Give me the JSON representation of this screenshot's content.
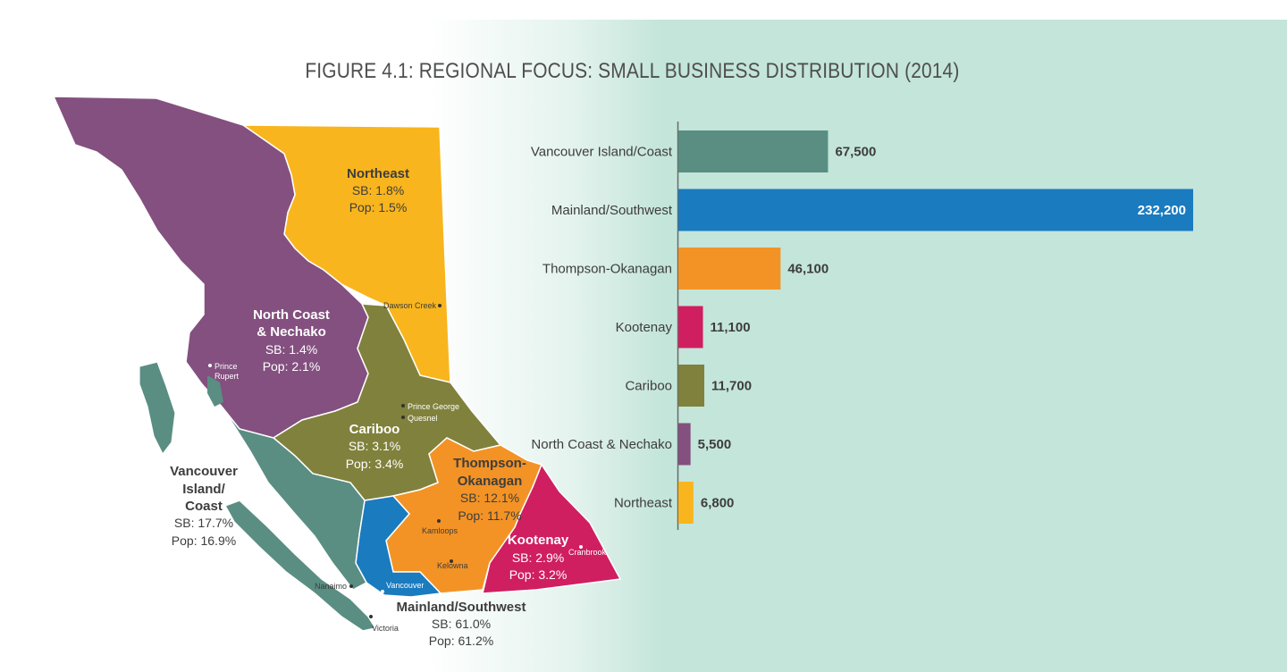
{
  "title": "FIGURE 4.1: REGIONAL FOCUS: SMALL BUSINESS DISTRIBUTION (2014)",
  "colors": {
    "vancouver_island": "#5a8e83",
    "mainland": "#1a7bbf",
    "thompson": "#f39325",
    "kootenay": "#cf1f61",
    "cariboo": "#80813c",
    "north_coast": "#83507f",
    "northeast": "#f9b51d",
    "label_dark": "#3d3d3d",
    "axis": "#6a6a6a"
  },
  "map": {
    "regions": [
      {
        "name": "Northeast",
        "sb": "SB: 1.8%",
        "pop": "Pop: 1.5%"
      },
      {
        "name1": "North Coast",
        "name2": "& Nechako",
        "sb": "SB: 1.4%",
        "pop": "Pop: 2.1%"
      },
      {
        "name": "Cariboo",
        "sb": "SB: 3.1%",
        "pop": "Pop: 3.4%"
      },
      {
        "name1": "Thompson-",
        "name2": "Okanagan",
        "sb": "SB: 12.1%",
        "pop": "Pop: 11.7%"
      },
      {
        "name": "Kootenay",
        "sb": "SB: 2.9%",
        "pop": "Pop: 3.2%"
      },
      {
        "name1": "Vancouver",
        "name2": "Island/",
        "name3": "Coast",
        "sb": "SB: 17.7%",
        "pop": "Pop: 16.9%"
      },
      {
        "name": "Mainland/Southwest",
        "sb": "SB: 61.0%",
        "pop": "Pop: 61.2%"
      }
    ],
    "cities": {
      "dawson_creek": "Dawson Creek",
      "prince_rupert_1": "Prince",
      "prince_rupert_2": "Rupert",
      "prince_george": "Prince George",
      "quesnel": "Quesnel",
      "kamloops": "Kamloops",
      "kelowna": "Kelowna",
      "cranbrook": "Cranbrook",
      "vancouver": "Vancouver",
      "nanaimo": "Nanaimo",
      "victoria": "Victoria"
    }
  },
  "chart_data": {
    "type": "bar",
    "orientation": "horizontal",
    "title": "FIGURE 4.1: REGIONAL FOCUS: SMALL BUSINESS DISTRIBUTION (2014)",
    "xlabel": "",
    "ylabel": "",
    "xlim": [
      0,
      232200
    ],
    "categories": [
      "Vancouver Island/Coast",
      "Mainland/Southwest",
      "Thompson-Okanagan",
      "Kootenay",
      "Cariboo",
      "North Coast & Nechako",
      "Northeast"
    ],
    "values": [
      67500,
      232200,
      46100,
      11100,
      11700,
      5500,
      6800
    ],
    "labels": [
      "67,500",
      "232,200",
      "46,100",
      "11,100",
      "11,700",
      "5,500",
      "6,800"
    ],
    "colors": [
      "#5a8e83",
      "#1a7bbf",
      "#f39325",
      "#cf1f61",
      "#80813c",
      "#83507f",
      "#f9b51d"
    ],
    "grid": false,
    "legend": "none"
  }
}
